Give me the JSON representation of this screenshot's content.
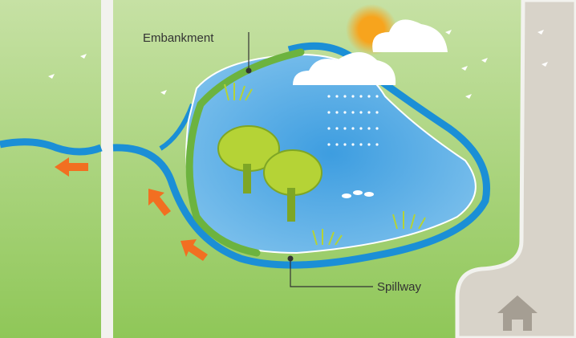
{
  "labels": {
    "embankment": "Embankment",
    "spillway": "Spillway"
  }
}
